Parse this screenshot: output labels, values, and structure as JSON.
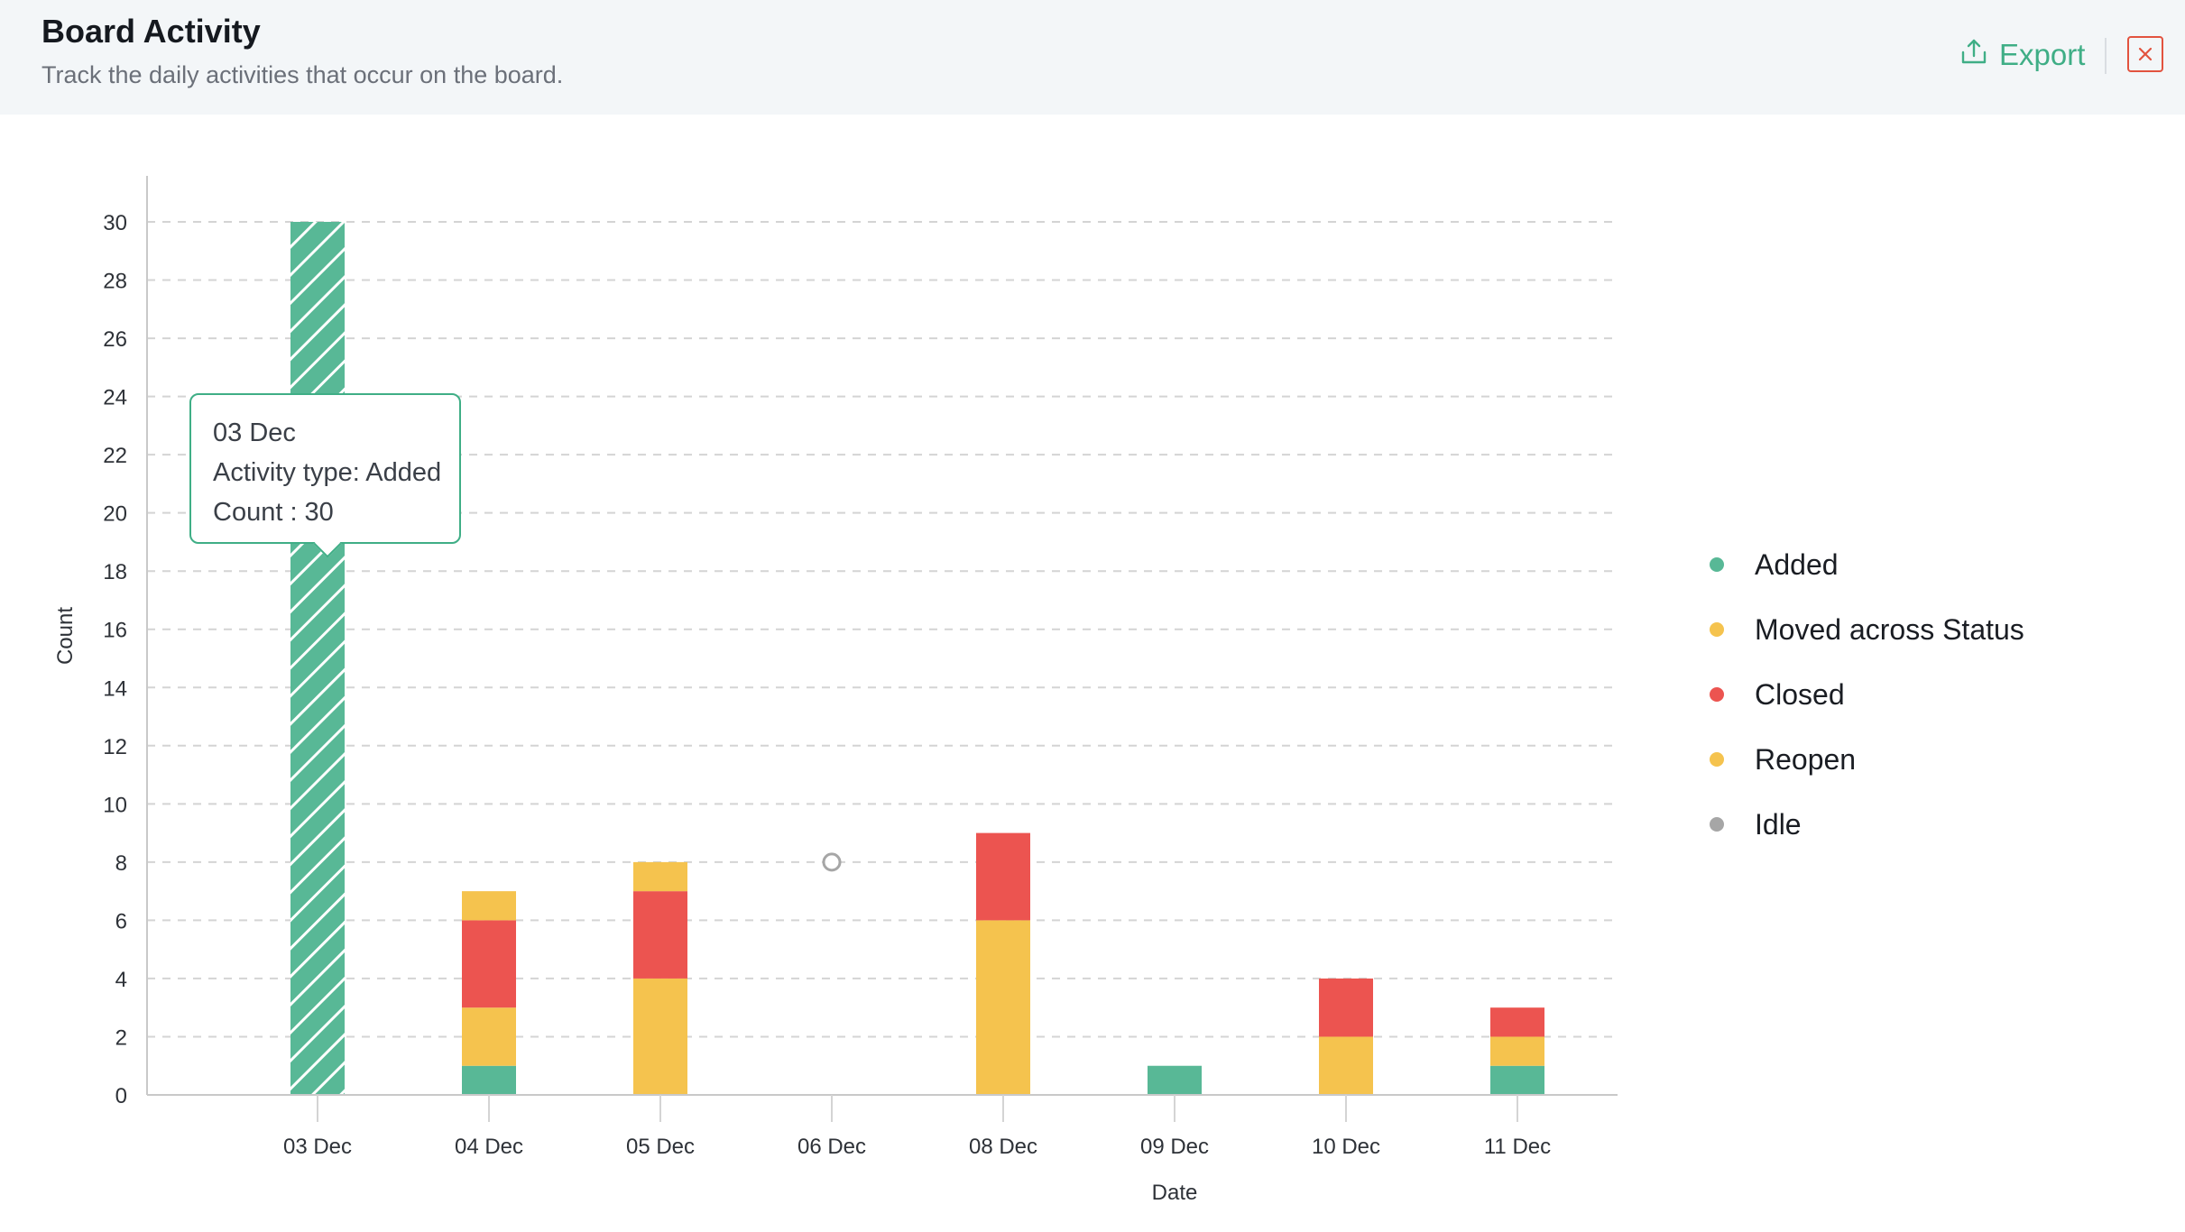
{
  "header": {
    "title": "Board Activity",
    "subtitle": "Track the daily activities that occur on the board.",
    "export_label": "Export",
    "export_icon": "upload-icon",
    "close_icon": "close-icon"
  },
  "colors": {
    "added": "#58b896",
    "moved": "#f5c34e",
    "closed": "#ec5450",
    "reopen": "#f5c34e",
    "idle": "#a6a6a6",
    "accent": "#3fae86",
    "close": "#e2533f"
  },
  "legend": [
    {
      "label": "Added",
      "color": "#58b896"
    },
    {
      "label": "Moved across Status",
      "color": "#f5c34e"
    },
    {
      "label": "Closed",
      "color": "#ec5450"
    },
    {
      "label": "Reopen",
      "color": "#f5c34e"
    },
    {
      "label": "Idle",
      "color": "#a6a6a6"
    }
  ],
  "tooltip": {
    "date": "03 Dec",
    "type_line": "Activity type: Added",
    "count_line": "Count : 30"
  },
  "chart_data": {
    "type": "bar",
    "stacked": true,
    "categories": [
      "03 Dec",
      "04 Dec",
      "05 Dec",
      "06 Dec",
      "08 Dec",
      "09 Dec",
      "10 Dec",
      "11 Dec"
    ],
    "series": [
      {
        "name": "Added",
        "values": [
          30,
          1,
          0,
          0,
          0,
          1,
          0,
          1
        ]
      },
      {
        "name": "Moved across Status",
        "values": [
          0,
          2,
          4,
          0,
          6,
          0,
          2,
          1
        ]
      },
      {
        "name": "Closed",
        "values": [
          0,
          3,
          3,
          0,
          3,
          0,
          2,
          1
        ]
      },
      {
        "name": "Reopen",
        "values": [
          0,
          1,
          1,
          0,
          0,
          0,
          0,
          0
        ]
      },
      {
        "name": "Idle",
        "values": [
          0,
          0,
          0,
          8,
          0,
          0,
          0,
          0
        ]
      }
    ],
    "xlabel": "Date",
    "ylabel": "Count",
    "ylim": [
      0,
      30
    ],
    "yticks": [
      0,
      2,
      4,
      6,
      8,
      10,
      12,
      14,
      16,
      18,
      20,
      22,
      24,
      26,
      28,
      30
    ],
    "grid": true,
    "legend_position": "right",
    "highlighted": {
      "category": "03 Dec",
      "series": "Added"
    }
  }
}
